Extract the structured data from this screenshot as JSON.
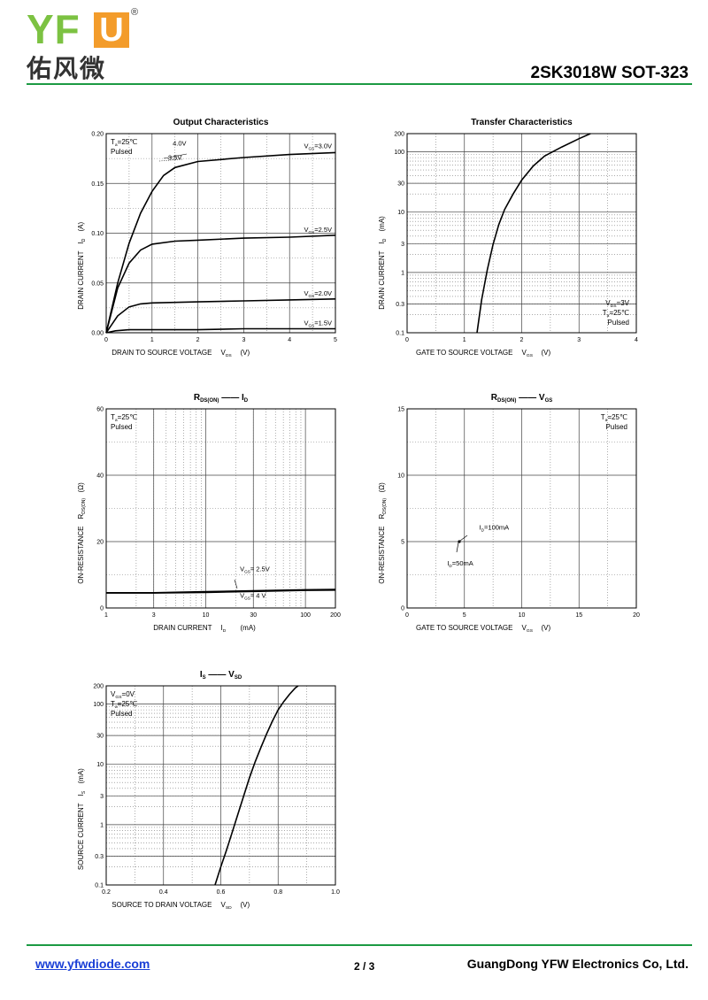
{
  "header": {
    "logo_letters": "YF",
    "logo_box_letter": "U",
    "logo_reg_mark": "®",
    "logo_chinese": "佑风微",
    "part_title": "2SK3018W SOT-323",
    "brand_green": "#1c9a43",
    "logo_green": "#7cc242",
    "logo_orange": "#f39c2b"
  },
  "footer": {
    "link": "www.yfwdiode.com",
    "page": "2 / 3",
    "company": "GuangDong YFW Electronics Co, Ltd."
  },
  "chart_data": [
    {
      "id": "output",
      "type": "line",
      "title": "Output Characteristics",
      "xlabel": "DRAIN TO SOURCE VOLTAGE",
      "xsym": "V",
      "xsub": "DS",
      "xunit": "(V)",
      "ylabel": "DRAIN CURRENT",
      "ysym": "I",
      "ysub": "D",
      "yunit": "(A)",
      "xscale": "linear",
      "yscale": "linear",
      "xlim": [
        0,
        5
      ],
      "ylim": [
        0,
        0.2
      ],
      "xticks": [
        0,
        1,
        2,
        3,
        4,
        5
      ],
      "xtick_labels": [
        "0",
        "1",
        "2",
        "3",
        "4",
        "5"
      ],
      "yticks": [
        0,
        0.05,
        0.1,
        0.15,
        0.2
      ],
      "ytick_labels": [
        "0.00",
        "0.05",
        "0.10",
        "0.15",
        "0.20"
      ],
      "xminor": [
        0.5,
        1.5,
        2.5,
        3.5,
        4.5
      ],
      "yminor": [
        0.025,
        0.075,
        0.125,
        0.175
      ],
      "notes": [
        "T|a|=25℃",
        "Pulsed"
      ],
      "notes_pos": "top-left",
      "series": [
        {
          "label": "V|GS|=3.0V",
          "x": [
            0,
            0.25,
            0.5,
            0.75,
            1.0,
            1.25,
            1.5,
            2.0,
            3.0,
            4.0,
            5.0
          ],
          "y": [
            0,
            0.05,
            0.09,
            0.12,
            0.142,
            0.158,
            0.166,
            0.172,
            0.176,
            0.179,
            0.181
          ],
          "label_x": 5,
          "label_y": 0.182
        },
        {
          "label": "V|GS|=2.5V",
          "x": [
            0,
            0.25,
            0.5,
            0.75,
            1.0,
            1.5,
            2.0,
            3.0,
            4.0,
            5.0
          ],
          "y": [
            0,
            0.045,
            0.07,
            0.083,
            0.089,
            0.092,
            0.093,
            0.095,
            0.096,
            0.098
          ],
          "label_x": 5,
          "label_y": 0.098
        },
        {
          "label": "V|GS|=2.0V",
          "x": [
            0,
            0.25,
            0.5,
            0.75,
            1.0,
            2.0,
            3.0,
            4.0,
            5.0
          ],
          "y": [
            0,
            0.017,
            0.026,
            0.029,
            0.03,
            0.031,
            0.032,
            0.033,
            0.034
          ],
          "label_x": 5,
          "label_y": 0.034
        },
        {
          "label": "V|GS|=1.5V",
          "x": [
            0,
            0.2,
            0.5,
            1.0,
            2.0,
            3.0,
            4.0,
            5.0
          ],
          "y": [
            0,
            0.002,
            0.003,
            0.003,
            0.003,
            0.004,
            0.004,
            0.004
          ],
          "label_x": 5,
          "label_y": 0.004
        }
      ],
      "extra_labels": [
        {
          "text": "4.0V",
          "x": 1.45,
          "y": 0.188
        },
        {
          "text": "3.5V",
          "x": 1.35,
          "y": 0.174
        }
      ]
    },
    {
      "id": "transfer",
      "type": "line",
      "title": "Transfer Characteristics",
      "xlabel": "GATE TO SOURCE VOLTAGE",
      "xsym": "V",
      "xsub": "GS",
      "xunit": "(V)",
      "ylabel": "DRAIN CURRENT",
      "ysym": "I",
      "ysub": "D",
      "yunit": "(mA)",
      "xscale": "linear",
      "yscale": "log",
      "xlim": [
        0,
        4
      ],
      "ylim": [
        0.1,
        200
      ],
      "xticks": [
        0,
        1,
        2,
        3,
        4
      ],
      "xtick_labels": [
        "0",
        "1",
        "2",
        "3",
        "4"
      ],
      "yticks": [
        0.1,
        0.3,
        1,
        3,
        10,
        30,
        100,
        200
      ],
      "ytick_labels": [
        "0.1",
        "0.3",
        "1",
        "3",
        "10",
        "30",
        "100",
        "200"
      ],
      "xminor": [
        0.5,
        1.5,
        2.5,
        3.5
      ],
      "notes": [
        "V|DS|=3V",
        "T|a|=25℃",
        "Pulsed"
      ],
      "notes_pos": "bottom-right",
      "series": [
        {
          "label": "",
          "x": [
            1.22,
            1.3,
            1.4,
            1.5,
            1.6,
            1.7,
            1.85,
            2.0,
            2.2,
            2.4,
            2.7,
            3.0,
            3.2
          ],
          "y": [
            0.1,
            0.35,
            1.1,
            2.9,
            6.2,
            11,
            20,
            34,
            58,
            85,
            120,
            165,
            200
          ]
        }
      ],
      "extra_labels": []
    },
    {
      "id": "rds-id",
      "type": "line",
      "title_parts": [
        "R",
        "DS(ON)",
        "——",
        "I",
        "D"
      ],
      "xlabel": "DRAIN CURRENT",
      "xsym": "I",
      "xsub": "D",
      "xunit": "(mA)",
      "ylabel": "ON-RESISTANCE",
      "ysym": "R",
      "ysub": "DS(ON)",
      "yunit": "(Ω)",
      "xscale": "log",
      "yscale": "linear",
      "xlim": [
        1,
        200
      ],
      "ylim": [
        0,
        60
      ],
      "xticks": [
        1,
        3,
        10,
        30,
        100,
        200
      ],
      "xtick_labels": [
        "1",
        "3",
        "10",
        "30",
        "100",
        "200"
      ],
      "yticks": [
        0,
        20,
        40,
        60
      ],
      "ytick_labels": [
        "0",
        "20",
        "40",
        "60"
      ],
      "yminor": [
        10,
        30,
        50
      ],
      "notes": [
        "T|a|=25℃",
        "Pulsed"
      ],
      "notes_pos": "top-left",
      "series": [
        {
          "label": "V|GS|= 2.5V",
          "x": [
            1,
            3,
            10,
            30,
            100,
            200
          ],
          "y": [
            4.6,
            4.6,
            4.9,
            5.2,
            5.5,
            5.6
          ],
          "label_x": 22,
          "label_y": 10
        },
        {
          "label": "V|GS|= 4 V",
          "x": [
            1,
            3,
            10,
            30,
            100,
            200
          ],
          "y": [
            4.5,
            4.5,
            4.7,
            5.0,
            5.3,
            5.4
          ],
          "label_x": 22,
          "label_y": 2
        }
      ],
      "extra_labels": []
    },
    {
      "id": "rds-vgs",
      "type": "scatter",
      "title_parts": [
        "R",
        "DS(ON)",
        "——",
        "V",
        "GS"
      ],
      "xlabel": "GATE TO SOURCE VOLTAGE",
      "xsym": "V",
      "xsub": "GS",
      "xunit": "(V)",
      "ylabel": "ON-RESISTANCE",
      "ysym": "R",
      "ysub": "DS(ON)",
      "yunit": "(Ω)",
      "xscale": "linear",
      "yscale": "linear",
      "xlim": [
        0,
        20
      ],
      "ylim": [
        0,
        15
      ],
      "xticks": [
        0,
        5,
        10,
        15,
        20
      ],
      "xtick_labels": [
        "0",
        "5",
        "10",
        "15",
        "20"
      ],
      "yticks": [
        0,
        5,
        10,
        15
      ],
      "ytick_labels": [
        "0",
        "5",
        "10",
        "15"
      ],
      "xminor": [
        2.5,
        7.5,
        12.5,
        17.5
      ],
      "yminor": [
        2.5,
        7.5,
        12.5
      ],
      "notes": [
        "T|a|=25℃",
        "Pulsed"
      ],
      "notes_pos": "top-right",
      "series": [],
      "extra_labels": [
        {
          "text": "I|D|=100mA",
          "x": 6.3,
          "y": 5.9
        },
        {
          "text": "I|D|=50mA",
          "x": 3.5,
          "y": 3.2
        }
      ]
    },
    {
      "id": "is-vsd",
      "type": "line",
      "title_parts": [
        "I",
        "S",
        "——",
        "V",
        "SD"
      ],
      "xlabel": "SOURCE TO DRAIN VOLTAGE",
      "xsym": "V",
      "xsub": "SD",
      "xunit": "(V)",
      "ylabel": "SOURCE CURRENT",
      "ysym": "I",
      "ysub": "S",
      "yunit": "(mA)",
      "xscale": "linear",
      "yscale": "log",
      "xlim": [
        0.2,
        1.0
      ],
      "ylim": [
        0.1,
        200
      ],
      "xticks": [
        0.2,
        0.4,
        0.6,
        0.8,
        1.0
      ],
      "xtick_labels": [
        "0.2",
        "0.4",
        "0.6",
        "0.8",
        "1.0"
      ],
      "yticks": [
        0.1,
        0.3,
        1,
        3,
        10,
        30,
        100,
        200
      ],
      "ytick_labels": [
        "0.1",
        "0.3",
        "1",
        "3",
        "10",
        "30",
        "100",
        "200"
      ],
      "xminor": [
        0.3,
        0.5,
        0.7,
        0.9
      ],
      "notes": [
        "V|GS|=0V",
        "T|a|=25℃",
        "Pulsed"
      ],
      "notes_pos": "top-left",
      "series": [
        {
          "label": "",
          "x": [
            0.58,
            0.6,
            0.62,
            0.64,
            0.66,
            0.68,
            0.7,
            0.72,
            0.74,
            0.76,
            0.78,
            0.8,
            0.82,
            0.84,
            0.86,
            0.87
          ],
          "y": [
            0.1,
            0.2,
            0.38,
            0.75,
            1.5,
            3.0,
            6.0,
            11,
            19,
            32,
            52,
            80,
            110,
            145,
            185,
            200
          ]
        }
      ],
      "extra_labels": []
    }
  ]
}
